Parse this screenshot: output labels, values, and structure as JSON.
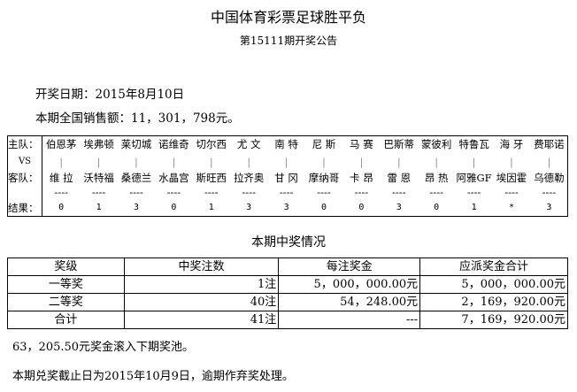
{
  "title": "中国体育彩票足球胜平负",
  "subtitle": "第15111期开奖公告",
  "draw_date": "开奖日期：2015年8月10日",
  "sales": "本期全国销售额：11，301，798元。",
  "match_labels": {
    "home": "主队：",
    "vs": "VS",
    "away": "客队：",
    "result": "结果："
  },
  "matches": [
    {
      "home": "伯恩茅",
      "away": "维 拉",
      "result": "0"
    },
    {
      "home": "埃弗顿",
      "away": "沃特福",
      "result": "1"
    },
    {
      "home": "莱切城",
      "away": "桑德兰",
      "result": "3"
    },
    {
      "home": "诺维奇",
      "away": "水晶宫",
      "result": "0"
    },
    {
      "home": "切尔西",
      "away": "斯旺西",
      "result": "1"
    },
    {
      "home": "尤 文",
      "away": "拉齐奥",
      "result": "3"
    },
    {
      "home": "南 特",
      "away": "甘 冈",
      "result": "3"
    },
    {
      "home": "尼 斯",
      "away": "摩纳哥",
      "result": "0"
    },
    {
      "home": "马 赛",
      "away": "卡 昂",
      "result": "0"
    },
    {
      "home": "巴斯蒂",
      "away": "雷 恩",
      "result": "3"
    },
    {
      "home": "蒙彼利",
      "away": "昂 热",
      "result": "0"
    },
    {
      "home": "特鲁瓦",
      "away": "阿雅GF",
      "result": "1"
    },
    {
      "home": "海 牙",
      "away": "埃因霍",
      "result": "*"
    },
    {
      "home": "费耶诺",
      "away": "乌德勒",
      "result": "3"
    }
  ],
  "separator": "|",
  "dash": "----",
  "prize_section_title": "本期中奖情况",
  "prize_table": {
    "headers": [
      "奖级",
      "中奖注数",
      "每注奖金",
      "应派奖金合计"
    ],
    "rows": [
      [
        "一等奖",
        "1注",
        "5，000，000.00元",
        "5，000，000.00元"
      ],
      [
        "二等奖",
        "40注",
        "54，248.00元",
        "2，169，920.00元"
      ],
      [
        "合计",
        "41注",
        "---",
        "7，169，920.00元"
      ]
    ]
  },
  "rollover": "63，205.50元奖金滚入下期奖池。",
  "deadline": "本期兑奖截止日为2015年10月9日，逾期作弃奖处理。"
}
